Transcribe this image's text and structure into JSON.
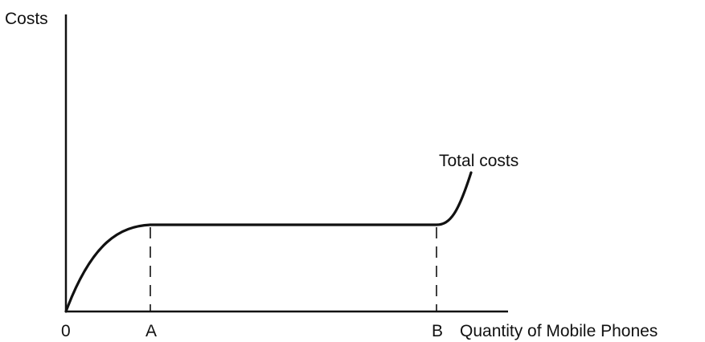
{
  "chart_data": {
    "type": "line",
    "ylabel": "Costs",
    "xlabel": "Quantity of Mobile Phones",
    "x_ticks": [
      "0",
      "A",
      "B"
    ],
    "series": [
      {
        "name": "Total costs",
        "shape": [
          {
            "x": 0,
            "y": 0
          },
          {
            "x": "A",
            "y": "flat level"
          },
          {
            "x": "B",
            "y": "flat level"
          },
          {
            "x": "beyond B",
            "y": "rising steeply"
          }
        ]
      }
    ],
    "dashed_guides_at": [
      "A",
      "B"
    ],
    "axis_values_shown": false,
    "grid": false,
    "colors": {
      "ink": "#111111",
      "background": "#ffffff"
    }
  }
}
